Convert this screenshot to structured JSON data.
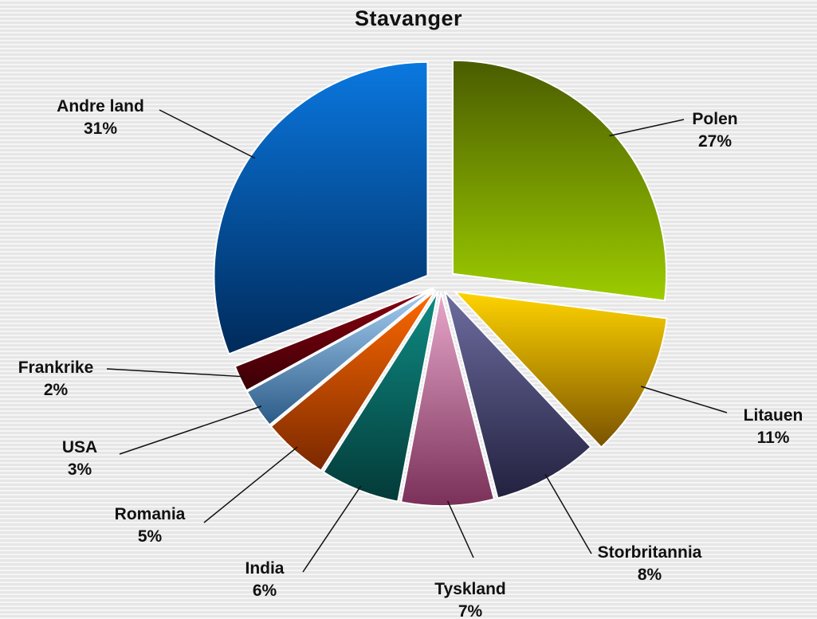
{
  "chart_data": {
    "type": "pie",
    "title": "Stavanger",
    "slices": [
      {
        "name": "Polen",
        "value": 27,
        "label": "27%",
        "colors": [
          "#4a5c00",
          "#9ccc00"
        ]
      },
      {
        "name": "Litauen",
        "value": 11,
        "label": "11%",
        "colors": [
          "#ffd400",
          "#7a5200"
        ]
      },
      {
        "name": "Storbritannia",
        "value": 8,
        "label": "8%",
        "colors": [
          "#6e6da0",
          "#22213f"
        ]
      },
      {
        "name": "Tyskland",
        "value": 7,
        "label": "7%",
        "colors": [
          "#e8a8cc",
          "#7a3058"
        ]
      },
      {
        "name": "India",
        "value": 6,
        "label": "6%",
        "colors": [
          "#0f8c84",
          "#033a38"
        ]
      },
      {
        "name": "Romania",
        "value": 5,
        "label": "5%",
        "colors": [
          "#ff6a00",
          "#7a2800"
        ]
      },
      {
        "name": "USA",
        "value": 3,
        "label": "3%",
        "colors": [
          "#a8d0f4",
          "#2a5a86"
        ]
      },
      {
        "name": "Frankrike",
        "value": 2,
        "label": "2%",
        "colors": [
          "#8a0010",
          "#3a0006"
        ]
      },
      {
        "name": "Andre land",
        "value": 31,
        "label": "31%",
        "colors": [
          "#0a78e0",
          "#002a5a"
        ]
      }
    ],
    "legend": "none"
  }
}
